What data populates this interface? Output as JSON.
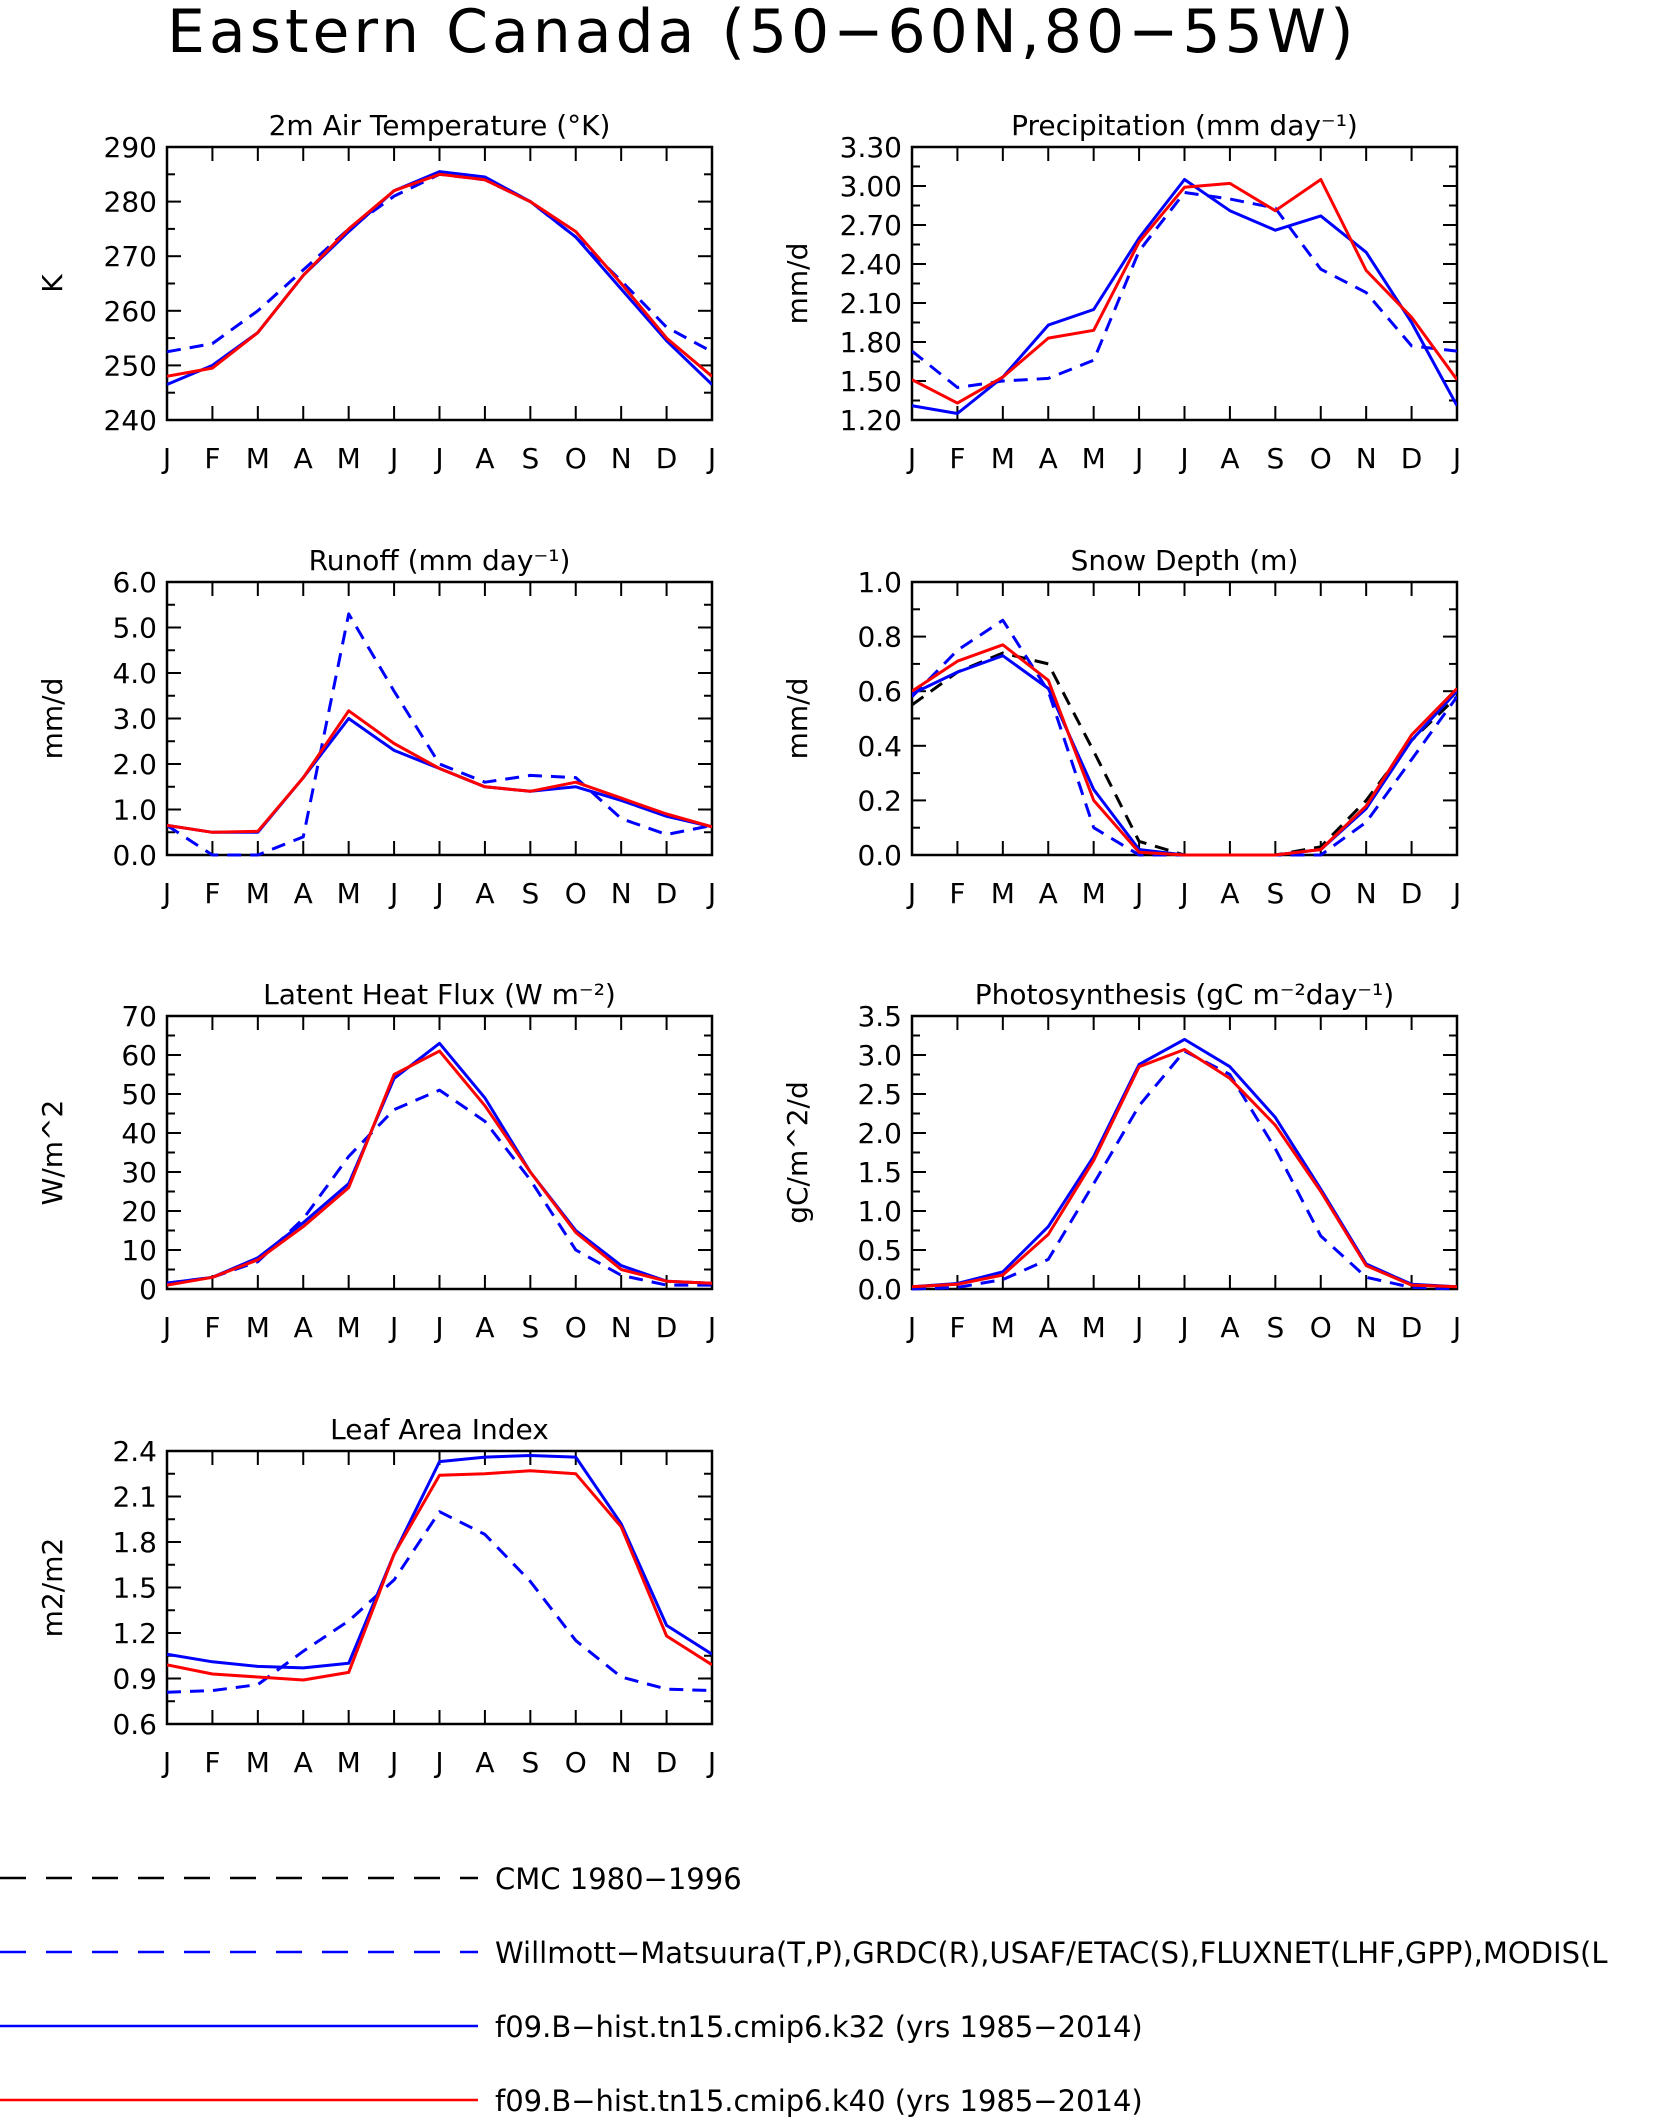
{
  "page": {
    "title": "Eastern Canada (50−60N,80−55W)"
  },
  "colors": {
    "cmc": "#000000",
    "observed": "#0000ff",
    "k32": "#0000ff",
    "k40": "#ff0000"
  },
  "legend": [
    {
      "id": "cmc",
      "label": "CMC 1980−1996",
      "color": "#000000",
      "dashed": true
    },
    {
      "id": "observed",
      "label": "Willmott−Matsuura(T,P),GRDC(R),USAF/ETAC(S),FLUXNET(LHF,GPP),MODIS(L",
      "color": "#0000ff",
      "dashed": true
    },
    {
      "id": "k32",
      "label": "f09.B−hist.tn15.cmip6.k32 (yrs 1985−2014)",
      "color": "#0000ff",
      "dashed": false
    },
    {
      "id": "k40",
      "label": "f09.B−hist.tn15.cmip6.k40 (yrs 1985−2014)",
      "color": "#ff0000",
      "dashed": false
    }
  ],
  "chart_data": [
    {
      "type": "line",
      "title": "2m Air Temperature (°K)",
      "ylabel": "K",
      "xlabel": "",
      "categories": [
        "J",
        "F",
        "M",
        "A",
        "M",
        "J",
        "J",
        "A",
        "S",
        "O",
        "N",
        "D",
        "J"
      ],
      "ylim": [
        240,
        290
      ],
      "yticks": [
        "240",
        "250",
        "260",
        "270",
        "280",
        "290"
      ],
      "series": [
        {
          "key": "observed",
          "style": "dashed",
          "values": [
            252.5,
            254,
            260,
            267.5,
            275,
            281,
            285,
            284,
            280,
            273.5,
            265.5,
            257,
            252.5
          ]
        },
        {
          "key": "k32",
          "style": "solid",
          "values": [
            246.5,
            250,
            256,
            266.5,
            274.5,
            282,
            285.5,
            284.5,
            280,
            273.5,
            264,
            254.5,
            246.5
          ]
        },
        {
          "key": "k40",
          "style": "solid",
          "values": [
            248,
            249.5,
            256,
            266.5,
            275,
            282,
            285,
            284,
            280,
            274.5,
            265,
            255,
            248
          ]
        }
      ]
    },
    {
      "type": "line",
      "title": "Precipitation (mm day⁻¹)",
      "ylabel": "mm/d",
      "xlabel": "",
      "categories": [
        "J",
        "F",
        "M",
        "A",
        "M",
        "J",
        "J",
        "A",
        "S",
        "O",
        "N",
        "D",
        "J"
      ],
      "ylim": [
        1.2,
        3.3
      ],
      "yticks": [
        "1.20",
        "1.50",
        "1.80",
        "2.10",
        "2.40",
        "2.70",
        "3.00",
        "3.30"
      ],
      "series": [
        {
          "key": "observed",
          "style": "dashed",
          "values": [
            1.73,
            1.45,
            1.5,
            1.52,
            1.66,
            2.5,
            2.95,
            2.9,
            2.83,
            2.36,
            2.18,
            1.77,
            1.73
          ]
        },
        {
          "key": "k32",
          "style": "solid",
          "values": [
            1.31,
            1.25,
            1.53,
            1.93,
            2.05,
            2.6,
            3.05,
            2.81,
            2.66,
            2.77,
            2.49,
            1.95,
            1.31
          ]
        },
        {
          "key": "k40",
          "style": "solid",
          "values": [
            1.51,
            1.33,
            1.53,
            1.83,
            1.89,
            2.57,
            2.99,
            3.02,
            2.81,
            3.05,
            2.35,
            1.99,
            1.51
          ]
        }
      ]
    },
    {
      "type": "line",
      "title": "Runoff (mm day⁻¹)",
      "ylabel": "mm/d",
      "xlabel": "",
      "categories": [
        "J",
        "F",
        "M",
        "A",
        "M",
        "J",
        "J",
        "A",
        "S",
        "O",
        "N",
        "D",
        "J"
      ],
      "ylim": [
        0,
        6
      ],
      "yticks": [
        "0.0",
        "1.0",
        "2.0",
        "3.0",
        "4.0",
        "5.0",
        "6.0"
      ],
      "series": [
        {
          "key": "observed",
          "style": "dashed",
          "values": [
            0.65,
            0.0,
            0.0,
            0.4,
            5.3,
            3.6,
            2.0,
            1.6,
            1.75,
            1.7,
            0.8,
            0.45,
            0.65
          ]
        },
        {
          "key": "k32",
          "style": "solid",
          "values": [
            0.65,
            0.5,
            0.5,
            1.7,
            3.0,
            2.3,
            1.9,
            1.5,
            1.4,
            1.5,
            1.2,
            0.85,
            0.62
          ]
        },
        {
          "key": "k40",
          "style": "solid",
          "values": [
            0.65,
            0.5,
            0.52,
            1.7,
            3.17,
            2.45,
            1.9,
            1.5,
            1.4,
            1.6,
            1.25,
            0.9,
            0.62
          ]
        }
      ]
    },
    {
      "type": "line",
      "title": "Snow Depth (m)",
      "ylabel": "mm/d",
      "xlabel": "",
      "categories": [
        "J",
        "F",
        "M",
        "A",
        "M",
        "J",
        "J",
        "A",
        "S",
        "O",
        "N",
        "D",
        "J"
      ],
      "ylim": [
        0,
        1
      ],
      "yticks": [
        "0.0",
        "0.2",
        "0.4",
        "0.6",
        "0.8",
        "1.0"
      ],
      "series": [
        {
          "key": "cmc",
          "style": "dashed",
          "values": [
            0.55,
            0.67,
            0.74,
            0.7,
            0.38,
            0.05,
            0.0,
            0.0,
            0.0,
            0.03,
            0.2,
            0.42,
            0.58
          ]
        },
        {
          "key": "observed",
          "style": "dashed",
          "values": [
            0.58,
            0.75,
            0.86,
            0.6,
            0.1,
            0.0,
            0.0,
            0.0,
            0.0,
            0.0,
            0.12,
            0.35,
            0.58
          ]
        },
        {
          "key": "k32",
          "style": "solid",
          "values": [
            0.59,
            0.67,
            0.73,
            0.61,
            0.24,
            0.02,
            0.0,
            0.0,
            0.0,
            0.02,
            0.17,
            0.42,
            0.6
          ]
        },
        {
          "key": "k40",
          "style": "solid",
          "values": [
            0.6,
            0.71,
            0.77,
            0.64,
            0.2,
            0.01,
            0.0,
            0.0,
            0.0,
            0.02,
            0.18,
            0.44,
            0.61
          ]
        }
      ]
    },
    {
      "type": "line",
      "title": "Latent Heat Flux (W m⁻²)",
      "ylabel": "W/m^2",
      "xlabel": "",
      "categories": [
        "J",
        "F",
        "M",
        "A",
        "M",
        "J",
        "J",
        "A",
        "S",
        "O",
        "N",
        "D",
        "J"
      ],
      "ylim": [
        0,
        70
      ],
      "yticks": [
        "0",
        "10",
        "20",
        "30",
        "40",
        "50",
        "60",
        "70"
      ],
      "series": [
        {
          "key": "observed",
          "style": "dashed",
          "values": [
            1.5,
            3,
            7,
            18,
            34,
            46,
            51,
            43,
            28,
            10,
            3.5,
            1,
            1
          ]
        },
        {
          "key": "k32",
          "style": "solid",
          "values": [
            1.5,
            3,
            8,
            17,
            27,
            54,
            63,
            49,
            30,
            15,
            6,
            2,
            1.5
          ]
        },
        {
          "key": "k40",
          "style": "solid",
          "values": [
            1,
            3,
            7.5,
            16,
            26,
            55,
            61,
            47,
            30,
            14.5,
            5,
            2,
            1.5
          ]
        }
      ]
    },
    {
      "type": "line",
      "title": "Photosynthesis (gC m⁻²day⁻¹)",
      "ylabel": "gC/m^2/d",
      "xlabel": "",
      "categories": [
        "J",
        "F",
        "M",
        "A",
        "M",
        "J",
        "J",
        "A",
        "S",
        "O",
        "N",
        "D",
        "J"
      ],
      "ylim": [
        0,
        3.5
      ],
      "yticks": [
        "0.0",
        "0.5",
        "1.0",
        "1.5",
        "2.0",
        "2.5",
        "3.0",
        "3.5"
      ],
      "series": [
        {
          "key": "observed",
          "style": "dashed",
          "values": [
            0.0,
            0.02,
            0.12,
            0.38,
            1.35,
            2.35,
            3.05,
            2.75,
            1.8,
            0.68,
            0.15,
            0.02,
            0.0
          ]
        },
        {
          "key": "k32",
          "style": "solid",
          "values": [
            0.03,
            0.07,
            0.22,
            0.8,
            1.7,
            2.88,
            3.2,
            2.85,
            2.2,
            1.28,
            0.32,
            0.06,
            0.03
          ]
        },
        {
          "key": "k40",
          "style": "solid",
          "values": [
            0.03,
            0.06,
            0.18,
            0.7,
            1.65,
            2.85,
            3.07,
            2.7,
            2.1,
            1.25,
            0.3,
            0.05,
            0.03
          ]
        }
      ]
    },
    {
      "type": "line",
      "title": "Leaf Area Index",
      "ylabel": "m2/m2",
      "xlabel": "",
      "categories": [
        "J",
        "F",
        "M",
        "A",
        "M",
        "J",
        "J",
        "A",
        "S",
        "O",
        "N",
        "D",
        "J"
      ],
      "ylim": [
        0.6,
        2.4
      ],
      "yticks": [
        "0.6",
        "0.9",
        "1.2",
        "1.5",
        "1.8",
        "2.1",
        "2.4"
      ],
      "series": [
        {
          "key": "observed",
          "style": "dashed",
          "values": [
            0.81,
            0.82,
            0.86,
            1.08,
            1.28,
            1.55,
            2.0,
            1.85,
            1.54,
            1.15,
            0.91,
            0.83,
            0.82
          ]
        },
        {
          "key": "k32",
          "style": "solid",
          "values": [
            1.06,
            1.01,
            0.98,
            0.97,
            1.0,
            1.72,
            2.33,
            2.36,
            2.37,
            2.36,
            1.92,
            1.25,
            1.06
          ]
        },
        {
          "key": "k40",
          "style": "solid",
          "values": [
            0.99,
            0.93,
            0.91,
            0.89,
            0.94,
            1.72,
            2.24,
            2.25,
            2.27,
            2.25,
            1.9,
            1.18,
            0.99
          ]
        }
      ]
    }
  ]
}
